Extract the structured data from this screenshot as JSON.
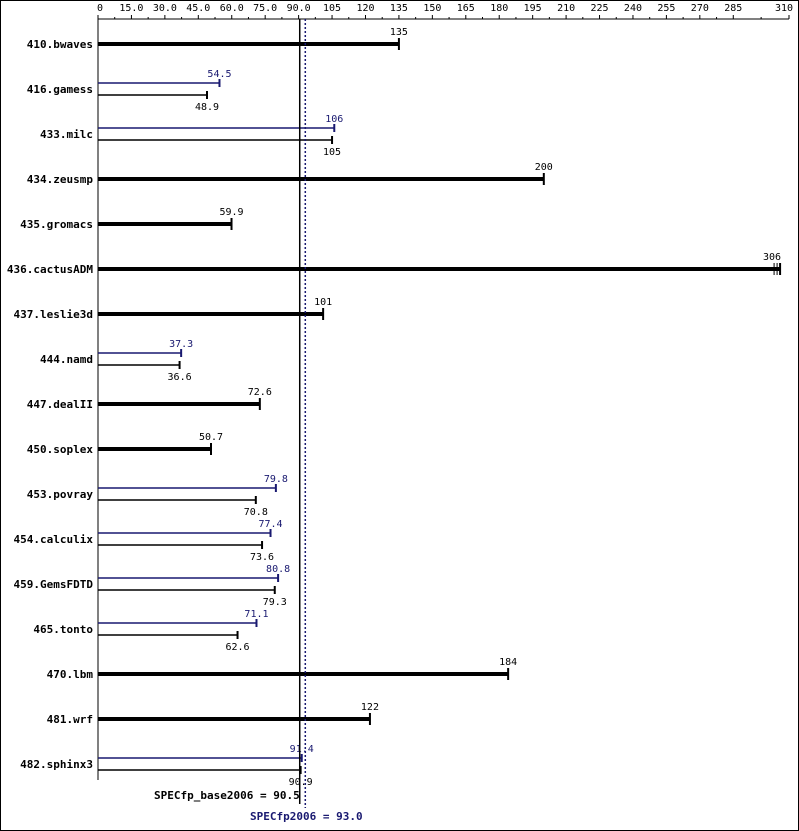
{
  "chart_data": {
    "type": "bar",
    "orientation": "horizontal",
    "x_ticks": [
      "0",
      "15.0",
      "30.0",
      "45.0",
      "60.0",
      "75.0",
      "90.0",
      "105",
      "120",
      "135",
      "150",
      "165",
      "180",
      "195",
      "210",
      "225",
      "240",
      "255",
      "270",
      "285",
      "310"
    ],
    "xlim": [
      0,
      310
    ],
    "colors": {
      "base": "#000000",
      "peak": "#191970",
      "frame": "#000000"
    },
    "benchmarks": [
      {
        "name": "410.bwaves",
        "base": 135,
        "base_label": "135"
      },
      {
        "name": "416.gamess",
        "base": 48.9,
        "base_label": "48.9",
        "peak": 54.5,
        "peak_label": "54.5"
      },
      {
        "name": "433.milc",
        "base": 105,
        "base_label": "105",
        "peak": 106,
        "peak_label": "106"
      },
      {
        "name": "434.zeusmp",
        "base": 200,
        "base_label": "200"
      },
      {
        "name": "435.gromacs",
        "base": 59.9,
        "base_label": "59.9"
      },
      {
        "name": "436.cactusADM",
        "base": 306,
        "base_label": "306"
      },
      {
        "name": "437.leslie3d",
        "base": 101,
        "base_label": "101"
      },
      {
        "name": "444.namd",
        "base": 36.6,
        "base_label": "36.6",
        "peak": 37.3,
        "peak_label": "37.3"
      },
      {
        "name": "447.dealII",
        "base": 72.6,
        "base_label": "72.6"
      },
      {
        "name": "450.soplex",
        "base": 50.7,
        "base_label": "50.7"
      },
      {
        "name": "453.povray",
        "base": 70.8,
        "base_label": "70.8",
        "peak": 79.8,
        "peak_label": "79.8"
      },
      {
        "name": "454.calculix",
        "base": 73.6,
        "base_label": "73.6",
        "peak": 77.4,
        "peak_label": "77.4"
      },
      {
        "name": "459.GemsFDTD",
        "base": 79.3,
        "base_label": "79.3",
        "peak": 80.8,
        "peak_label": "80.8"
      },
      {
        "name": "465.tonto",
        "base": 62.6,
        "base_label": "62.6",
        "peak": 71.1,
        "peak_label": "71.1"
      },
      {
        "name": "470.lbm",
        "base": 184,
        "base_label": "184"
      },
      {
        "name": "481.wrf",
        "base": 122,
        "base_label": "122"
      },
      {
        "name": "482.sphinx3",
        "base": 90.9,
        "base_label": "90.9",
        "peak": 91.4,
        "peak_label": "91.4"
      }
    ],
    "summary": {
      "base_value": 90.5,
      "base_label": "SPECfp_base2006 = 90.5",
      "peak_value": 93.0,
      "peak_label": "SPECfp2006 = 93.0"
    }
  }
}
